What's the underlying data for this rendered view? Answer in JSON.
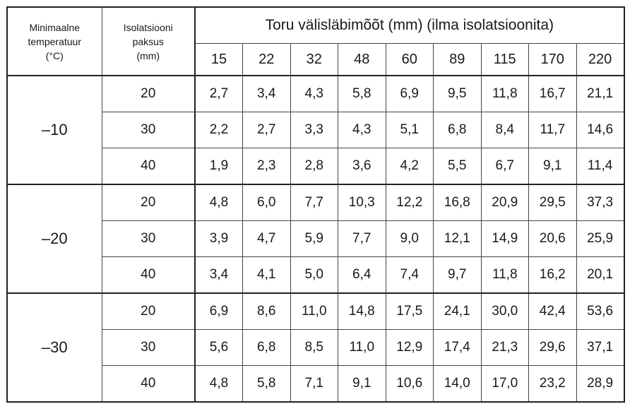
{
  "table": {
    "headers": {
      "temperature": [
        "Minimaalne",
        "temperatuur",
        "(°C)"
      ],
      "thickness": [
        "Isolatsiooni",
        "paksus",
        "(mm)"
      ],
      "diameter_title": "Toru välisläbimõõt (mm) (ilma isolatsioonita)",
      "diameters": [
        "15",
        "22",
        "32",
        "48",
        "60",
        "89",
        "115",
        "170",
        "220"
      ]
    },
    "groups": [
      {
        "temperature": "–10",
        "rows": [
          {
            "thickness": "20",
            "values": [
              "2,7",
              "3,4",
              "4,3",
              "5,8",
              "6,9",
              "9,5",
              "11,8",
              "16,7",
              "21,1"
            ]
          },
          {
            "thickness": "30",
            "values": [
              "2,2",
              "2,7",
              "3,3",
              "4,3",
              "5,1",
              "6,8",
              "8,4",
              "11,7",
              "14,6"
            ]
          },
          {
            "thickness": "40",
            "values": [
              "1,9",
              "2,3",
              "2,8",
              "3,6",
              "4,2",
              "5,5",
              "6,7",
              "9,1",
              "11,4"
            ]
          }
        ]
      },
      {
        "temperature": "–20",
        "rows": [
          {
            "thickness": "20",
            "values": [
              "4,8",
              "6,0",
              "7,7",
              "10,3",
              "12,2",
              "16,8",
              "20,9",
              "29,5",
              "37,3"
            ]
          },
          {
            "thickness": "30",
            "values": [
              "3,9",
              "4,7",
              "5,9",
              "7,7",
              "9,0",
              "12,1",
              "14,9",
              "20,6",
              "25,9"
            ]
          },
          {
            "thickness": "40",
            "values": [
              "3,4",
              "4,1",
              "5,0",
              "6,4",
              "7,4",
              "9,7",
              "11,8",
              "16,2",
              "20,1"
            ]
          }
        ]
      },
      {
        "temperature": "–30",
        "rows": [
          {
            "thickness": "20",
            "values": [
              "6,9",
              "8,6",
              "11,0",
              "14,8",
              "17,5",
              "24,1",
              "30,0",
              "42,4",
              "53,6"
            ]
          },
          {
            "thickness": "30",
            "values": [
              "5,6",
              "6,8",
              "8,5",
              "11,0",
              "12,9",
              "17,4",
              "21,3",
              "29,6",
              "37,1"
            ]
          },
          {
            "thickness": "40",
            "values": [
              "4,8",
              "5,8",
              "7,1",
              "9,1",
              "10,6",
              "14,0",
              "17,0",
              "23,2",
              "28,9"
            ]
          }
        ]
      }
    ]
  }
}
